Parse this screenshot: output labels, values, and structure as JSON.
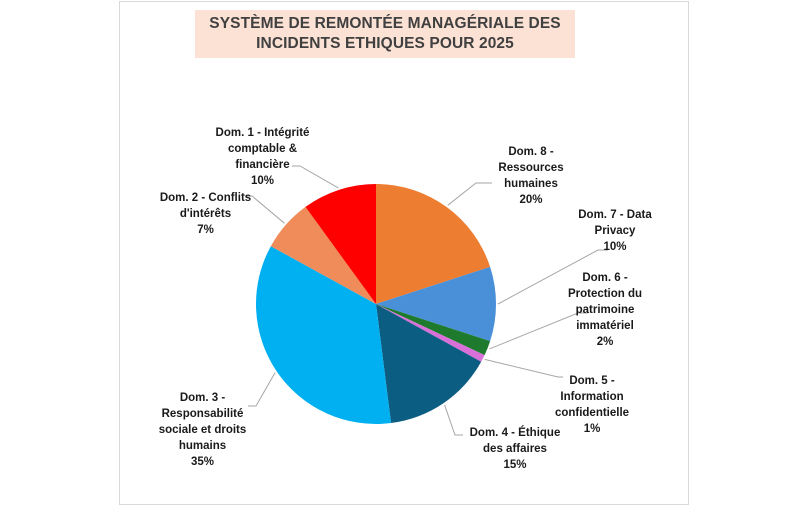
{
  "chart_data": {
    "type": "pie",
    "title": "SYSTÈME DE REMONTÉE MANAGÉRIALE DES INCIDENTS ETHIQUES POUR 2025",
    "title_lines": [
      "SYSTÈME DE REMONTÉE MANAGÉRIALE DES",
      "INCIDENTS ETHIQUES POUR 2025"
    ],
    "start_angle_deg": 0,
    "direction": "clockwise",
    "legend": "none",
    "data_labels": "category name and percentage, outside with leader lines",
    "slices": [
      {
        "name": "Dom. 8 - Ressources humaines",
        "value": 20,
        "label": "20%",
        "color": "#ED7D31",
        "label_lines": [
          "Dom. 8 -",
          "Ressources",
          "humaines",
          "20%"
        ]
      },
      {
        "name": "Dom. 7 - Data Privacy",
        "value": 10,
        "label": "10%",
        "color": "#4A90D9",
        "label_lines": [
          "Dom. 7 - Data",
          "Privacy",
          "10%"
        ]
      },
      {
        "name": "Dom. 6 - Protection du patrimoine immatériel",
        "value": 2,
        "label": "2%",
        "color": "#1E7B2E",
        "label_lines": [
          "Dom. 6 -",
          "Protection du",
          "patrimoine",
          "immatériel",
          "2%"
        ]
      },
      {
        "name": "Dom. 5 - Information confidentielle",
        "value": 1,
        "label": "1%",
        "color": "#D96FD9",
        "label_lines": [
          "Dom. 5 -",
          "Information",
          "confidentielle",
          "1%"
        ]
      },
      {
        "name": "Dom. 4 - Éthique des affaires",
        "value": 15,
        "label": "15%",
        "color": "#0B5D82",
        "label_lines": [
          "Dom. 4 - Éthique",
          "des affaires",
          "15%"
        ]
      },
      {
        "name": "Dom. 3 - Responsabilité sociale et droits humains",
        "value": 35,
        "label": "35%",
        "color": "#00B0F0",
        "label_lines": [
          "Dom. 3 -",
          "Responsabilité",
          "sociale et droits",
          "humains",
          "35%"
        ]
      },
      {
        "name": "Dom. 2 - Conflits d'intérêts",
        "value": 7,
        "label": "7%",
        "color": "#F08C5A",
        "label_lines": [
          "Dom. 2 - Conflits",
          "d'intérêts",
          "7%"
        ]
      },
      {
        "name": "Dom. 1 - Intégrité comptable & financière",
        "value": 10,
        "label": "10%",
        "color": "#FF0000",
        "label_lines": [
          "Dom. 1 - Intégrité",
          "comptable &",
          "financière",
          "10%"
        ]
      }
    ]
  },
  "chart_style": {
    "title_background": "#FBE2D5",
    "title_color": "#404040",
    "leader_line_color": "#A6A6A6",
    "frame_border": "#D9D9D9"
  }
}
